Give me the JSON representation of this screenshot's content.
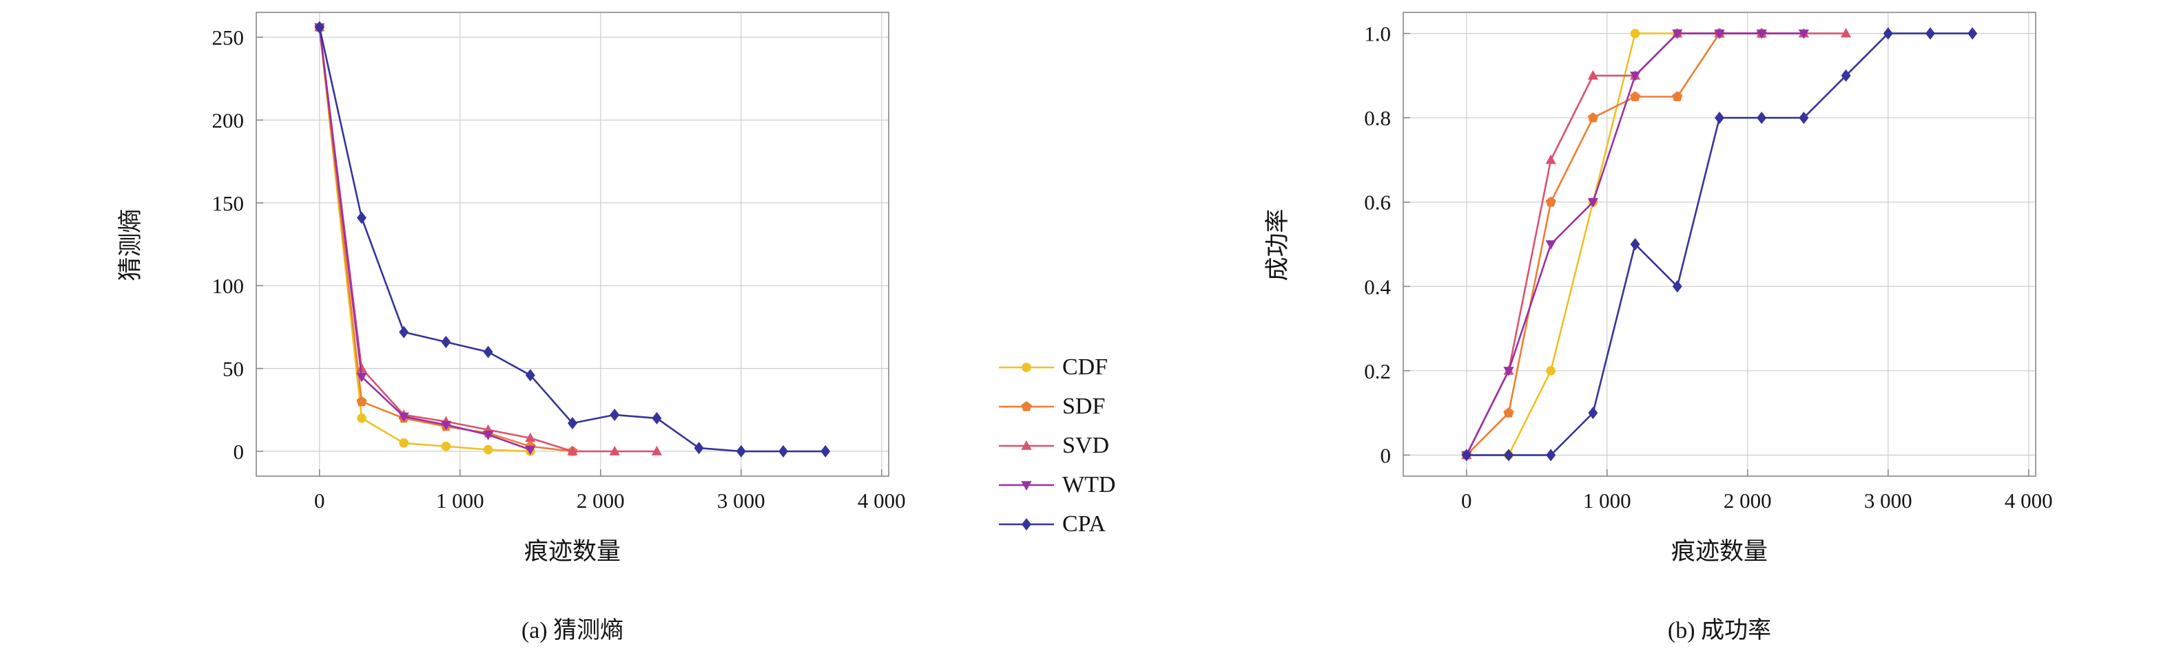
{
  "figure": {
    "background": "#ffffff",
    "grid_color": "#cdcdcd",
    "frame_color": "#878787",
    "text_color": "#141414"
  },
  "chart_data": [
    {
      "type": "line",
      "caption": "(a) 猜测熵",
      "xlabel": "痕迹数量",
      "ylabel": "猜测熵",
      "xlim": [
        -450,
        4050
      ],
      "ylim": [
        -15,
        265
      ],
      "grid": true,
      "legend_position": "outer-center-between-charts",
      "xticks": [
        0,
        1000,
        2000,
        3000,
        4000
      ],
      "xtick_labels": [
        "0",
        "1 000",
        "2 000",
        "3 000",
        "4 000"
      ],
      "yticks": [
        0,
        50,
        100,
        150,
        200,
        250
      ],
      "ytick_labels": [
        "0",
        "50",
        "100",
        "150",
        "200",
        "250"
      ],
      "x": [
        0,
        300,
        600,
        900,
        1200,
        1500,
        1800,
        2100,
        2400,
        2700,
        3000,
        3300,
        3600
      ],
      "series": [
        {
          "name": "CDF",
          "color": "#eec222",
          "marker": "circle",
          "values": [
            256,
            20,
            5,
            3,
            1,
            0
          ]
        },
        {
          "name": "SDF",
          "color": "#ee7d33",
          "marker": "pentagon",
          "values": [
            256,
            30,
            20,
            15,
            11,
            3,
            0
          ]
        },
        {
          "name": "SVD",
          "color": "#d9536f",
          "marker": "triangle-up",
          "values": [
            256,
            50,
            22,
            18,
            13,
            8,
            0,
            0,
            0
          ]
        },
        {
          "name": "WTD",
          "color": "#9a30a5",
          "marker": "triangle-down",
          "values": [
            256,
            45,
            21,
            16,
            10,
            1
          ]
        },
        {
          "name": "CPA",
          "color": "#34349c",
          "marker": "diamond",
          "values": [
            256,
            141,
            72,
            66,
            60,
            46,
            17,
            22,
            20,
            2,
            0,
            0,
            0
          ]
        }
      ]
    },
    {
      "type": "line",
      "caption": "(b) 成功率",
      "xlabel": "痕迹数量",
      "ylabel": "成功率",
      "xlim": [
        -450,
        4050
      ],
      "ylim": [
        -0.05,
        1.05
      ],
      "grid": true,
      "xticks": [
        0,
        1000,
        2000,
        3000,
        4000
      ],
      "xtick_labels": [
        "0",
        "1 000",
        "2 000",
        "3 000",
        "4 000"
      ],
      "yticks": [
        0,
        0.2,
        0.4,
        0.6,
        0.8,
        1.0
      ],
      "ytick_labels": [
        "0",
        "0.2",
        "0.4",
        "0.6",
        "0.8",
        "1.0"
      ],
      "x": [
        0,
        300,
        600,
        900,
        1200,
        1500,
        1800,
        2100,
        2400,
        2700,
        3000,
        3300,
        3600
      ],
      "series": [
        {
          "name": "CDF",
          "color": "#eec222",
          "marker": "circle",
          "values": [
            0,
            0,
            0.2,
            0.6,
            1.0,
            1.0,
            1.0
          ]
        },
        {
          "name": "SDF",
          "color": "#ee7d33",
          "marker": "pentagon",
          "values": [
            0,
            0.1,
            0.6,
            0.8,
            0.85,
            0.85,
            1.0,
            1.0
          ]
        },
        {
          "name": "SVD",
          "color": "#d9536f",
          "marker": "triangle-up",
          "values": [
            0,
            0.2,
            0.7,
            0.9,
            0.9,
            1.0,
            1.0,
            1.0,
            1.0,
            1.0
          ]
        },
        {
          "name": "WTD",
          "color": "#9a30a5",
          "marker": "triangle-down",
          "values": [
            0,
            0.2,
            0.5,
            0.6,
            0.9,
            1.0,
            1.0,
            1.0,
            1.0
          ]
        },
        {
          "name": "CPA",
          "color": "#34349c",
          "marker": "diamond",
          "values": [
            0,
            0,
            0,
            0.1,
            0.5,
            0.4,
            0.8,
            0.8,
            0.8,
            0.9,
            1.0,
            1.0,
            1.0
          ]
        }
      ]
    }
  ],
  "legend": {
    "items": [
      "CDF",
      "SDF",
      "SVD",
      "WTD",
      "CPA"
    ]
  }
}
